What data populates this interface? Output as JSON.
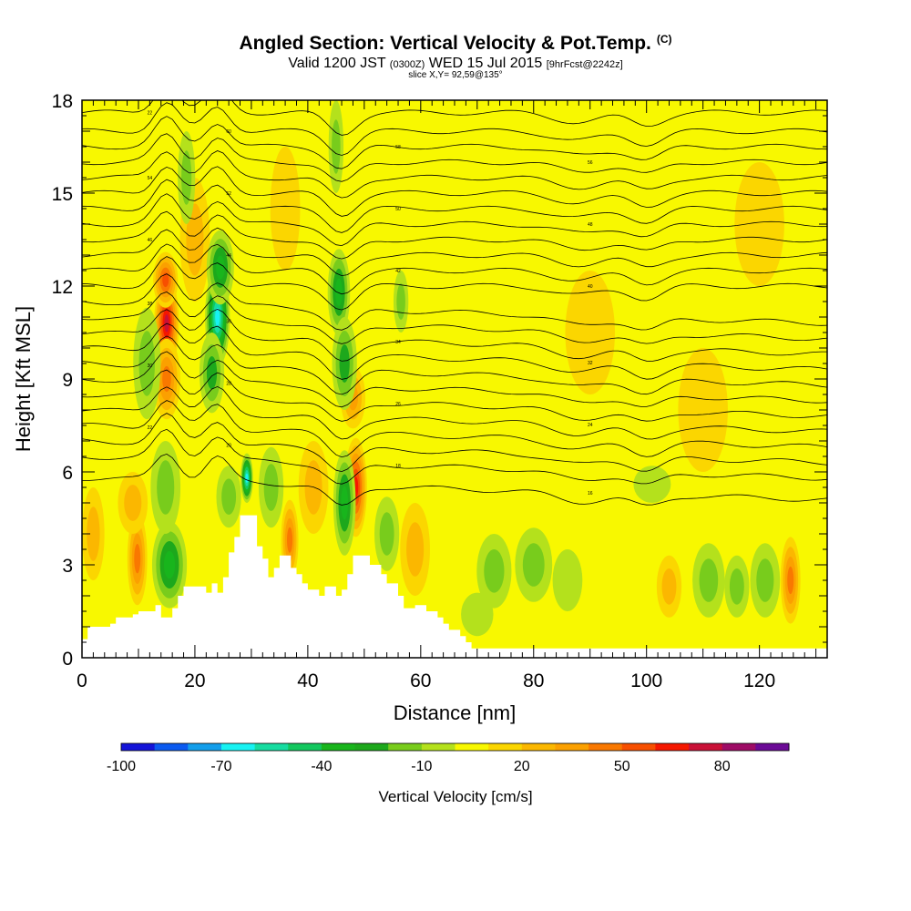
{
  "header": {
    "title": "Angled Section: Vertical Velocity & Pot.Temp.",
    "title_unit": "(C)",
    "valid_prefix": "Valid 1200 JST",
    "valid_utc": "(0300Z)",
    "valid_date": "WED 15 Jul 2015",
    "forecast": "[9hrFcst@2242z]",
    "slice": "slice X,Y= 92,59@135°"
  },
  "chart_data": {
    "type": "heatmap",
    "xlabel": "Distance [nm]",
    "ylabel": "Height [Kft MSL]",
    "xlim": [
      0,
      132
    ],
    "ylim": [
      0,
      18
    ],
    "x_ticks": [
      0,
      20,
      40,
      60,
      80,
      100,
      120
    ],
    "y_ticks": [
      0,
      3,
      6,
      9,
      12,
      15,
      18
    ],
    "background_level": 0,
    "terrain": [
      [
        0,
        0.6
      ],
      [
        1,
        1.0
      ],
      [
        5,
        1.1
      ],
      [
        6,
        1.3
      ],
      [
        9,
        1.4
      ],
      [
        10,
        1.5
      ],
      [
        13,
        1.7
      ],
      [
        14,
        1.3
      ],
      [
        16,
        1.6
      ],
      [
        17,
        2.0
      ],
      [
        18,
        2.3
      ],
      [
        22,
        2.1
      ],
      [
        23,
        2.4
      ],
      [
        24,
        2.1
      ],
      [
        25,
        2.6
      ],
      [
        26,
        3.4
      ],
      [
        27,
        3.9
      ],
      [
        28,
        4.6
      ],
      [
        30,
        4.6
      ],
      [
        31,
        3.6
      ],
      [
        32,
        3.2
      ],
      [
        33,
        2.6
      ],
      [
        34,
        2.9
      ],
      [
        35,
        3.3
      ],
      [
        36,
        3.3
      ],
      [
        37,
        2.9
      ],
      [
        38,
        2.7
      ],
      [
        39,
        2.4
      ],
      [
        40,
        2.2
      ],
      [
        42,
        2.0
      ],
      [
        43,
        2.3
      ],
      [
        45,
        2.0
      ],
      [
        46,
        2.2
      ],
      [
        47,
        2.7
      ],
      [
        48,
        3.3
      ],
      [
        50,
        3.3
      ],
      [
        51,
        3.0
      ],
      [
        53,
        2.7
      ],
      [
        54,
        2.4
      ],
      [
        56,
        2.0
      ],
      [
        57,
        1.6
      ],
      [
        59,
        1.7
      ],
      [
        61,
        1.5
      ],
      [
        63,
        1.3
      ],
      [
        64,
        1.1
      ],
      [
        65,
        0.9
      ],
      [
        67,
        0.7
      ],
      [
        68,
        0.5
      ],
      [
        69,
        0.3
      ],
      [
        132,
        0.3
      ]
    ],
    "velocity_cells": [
      {
        "x": 15,
        "y": 10.8,
        "sx": 1.0,
        "sy": 1.5,
        "value": 75
      },
      {
        "x": 15,
        "y": 9.0,
        "sx": 1.1,
        "sy": 1.3,
        "value": 45
      },
      {
        "x": 14.8,
        "y": 12.2,
        "sx": 1.0,
        "sy": 0.9,
        "value": 50
      },
      {
        "x": 9.8,
        "y": 3.2,
        "sx": 0.8,
        "sy": 1.5,
        "value": 45
      },
      {
        "x": 9.0,
        "y": 5.0,
        "sx": 1.2,
        "sy": 1.0,
        "value": 25
      },
      {
        "x": 36.8,
        "y": 3.8,
        "sx": 0.7,
        "sy": 1.3,
        "value": 45
      },
      {
        "x": 48.5,
        "y": 5.5,
        "sx": 0.9,
        "sy": 1.6,
        "value": 60
      },
      {
        "x": 48.0,
        "y": 8.4,
        "sx": 1.0,
        "sy": 1.0,
        "value": 30
      },
      {
        "x": 125.5,
        "y": 2.5,
        "sx": 0.8,
        "sy": 1.4,
        "value": 45
      },
      {
        "x": 104,
        "y": 2.3,
        "sx": 1.0,
        "sy": 1.0,
        "value": 25
      },
      {
        "x": 59,
        "y": 3.5,
        "sx": 1.2,
        "sy": 1.5,
        "value": 25
      },
      {
        "x": 41,
        "y": 5.5,
        "sx": 1.2,
        "sy": 1.5,
        "value": 20
      },
      {
        "x": 20,
        "y": 13.5,
        "sx": 1.2,
        "sy": 2.0,
        "value": 20
      },
      {
        "x": 36,
        "y": 14.5,
        "sx": 1.2,
        "sy": 2.0,
        "value": 18
      },
      {
        "x": 24,
        "y": 11.0,
        "sx": 1.0,
        "sy": 1.6,
        "value": -70
      },
      {
        "x": 24.5,
        "y": 12.6,
        "sx": 1.1,
        "sy": 1.2,
        "value": -45
      },
      {
        "x": 23,
        "y": 9.2,
        "sx": 1.0,
        "sy": 1.3,
        "value": -35
      },
      {
        "x": 29.2,
        "y": 5.8,
        "sx": 0.5,
        "sy": 0.8,
        "value": -70
      },
      {
        "x": 15.5,
        "y": 3.0,
        "sx": 1.4,
        "sy": 1.4,
        "value": -40
      },
      {
        "x": 14.8,
        "y": 5.5,
        "sx": 1.2,
        "sy": 1.5,
        "value": -20
      },
      {
        "x": 18.5,
        "y": 15.5,
        "sx": 0.7,
        "sy": 1.5,
        "value": -25
      },
      {
        "x": 11.5,
        "y": 9.5,
        "sx": 1.1,
        "sy": 1.8,
        "value": -20
      },
      {
        "x": 45.5,
        "y": 11.8,
        "sx": 0.9,
        "sy": 1.4,
        "value": -45
      },
      {
        "x": 46.5,
        "y": 9.5,
        "sx": 1.0,
        "sy": 1.5,
        "value": -30
      },
      {
        "x": 46.5,
        "y": 5.0,
        "sx": 0.9,
        "sy": 1.7,
        "value": -40
      },
      {
        "x": 45.0,
        "y": 16.5,
        "sx": 0.6,
        "sy": 1.5,
        "value": -20
      },
      {
        "x": 33.5,
        "y": 5.5,
        "sx": 1.0,
        "sy": 1.3,
        "value": -25
      },
      {
        "x": 26,
        "y": 5.2,
        "sx": 1.0,
        "sy": 1.0,
        "value": -25
      },
      {
        "x": 54,
        "y": 4.0,
        "sx": 1.0,
        "sy": 1.2,
        "value": -20
      },
      {
        "x": 56.5,
        "y": 11.5,
        "sx": 0.6,
        "sy": 1.0,
        "value": -20
      },
      {
        "x": 73,
        "y": 2.8,
        "sx": 1.4,
        "sy": 1.2,
        "value": -20
      },
      {
        "x": 80,
        "y": 3.0,
        "sx": 1.5,
        "sy": 1.2,
        "value": -20
      },
      {
        "x": 86,
        "y": 2.5,
        "sx": 1.2,
        "sy": 1.0,
        "value": -15
      },
      {
        "x": 70,
        "y": 1.4,
        "sx": 1.3,
        "sy": 0.7,
        "value": -15
      },
      {
        "x": 111,
        "y": 2.5,
        "sx": 1.3,
        "sy": 1.2,
        "value": -25
      },
      {
        "x": 116,
        "y": 2.3,
        "sx": 1.0,
        "sy": 1.0,
        "value": -25
      },
      {
        "x": 121,
        "y": 2.5,
        "sx": 1.2,
        "sy": 1.2,
        "value": -20
      },
      {
        "x": 101,
        "y": 5.6,
        "sx": 1.5,
        "sy": 0.6,
        "value": -15
      },
      {
        "x": 90,
        "y": 10.5,
        "sx": 2.0,
        "sy": 2.0,
        "value": 15
      },
      {
        "x": 110,
        "y": 8.0,
        "sx": 2.0,
        "sy": 2.0,
        "value": 12
      },
      {
        "x": 120,
        "y": 14.0,
        "sx": 2.0,
        "sy": 2.0,
        "value": 12
      },
      {
        "x": 2,
        "y": 4.0,
        "sx": 0.9,
        "sy": 1.5,
        "value": 20
      }
    ],
    "colorbar": {
      "levels": [
        -100,
        -90,
        -80,
        -70,
        -60,
        -50,
        -40,
        -30,
        -20,
        -10,
        0,
        10,
        20,
        30,
        40,
        50,
        60,
        70,
        80,
        90
      ],
      "colors": [
        "#1414d8",
        "#0b5af0",
        "#129eeb",
        "#17f2f2",
        "#16dca0",
        "#13c75e",
        "#18b51c",
        "#1da81c",
        "#78cc1c",
        "#b4e11c",
        "#f8f800",
        "#fbd600",
        "#fbb700",
        "#fba000",
        "#f97800",
        "#f74f00",
        "#f51700",
        "#c91037",
        "#9e0c66",
        "#6b0a96"
      ],
      "tick_labels": [
        "-100",
        "-70",
        "-40",
        "-10",
        "20",
        "50",
        "80"
      ],
      "label": "Vertical Velocity [cm/s]"
    },
    "theta_contours": [
      {
        "base": 17.6,
        "label": "22"
      },
      {
        "base": 17.0,
        "label": "60"
      },
      {
        "base": 16.5,
        "label": "58"
      },
      {
        "base": 16.0,
        "label": "56"
      },
      {
        "base": 15.5,
        "label": "54"
      },
      {
        "base": 15.0,
        "label": "52"
      },
      {
        "base": 14.5,
        "label": "50"
      },
      {
        "base": 14.0,
        "label": "48"
      },
      {
        "base": 13.5,
        "label": "46"
      },
      {
        "base": 13.0,
        "label": "44"
      },
      {
        "base": 12.5,
        "label": "42"
      },
      {
        "base": 12.0,
        "label": "40"
      },
      {
        "base": 11.5,
        "label": "38"
      },
      {
        "base": 11.0,
        "label": "36"
      },
      {
        "base": 10.5,
        "label": "34"
      },
      {
        "base": 10.0,
        "label": "32"
      },
      {
        "base": 9.5,
        "label": "30"
      },
      {
        "base": 9.0,
        "label": "28"
      },
      {
        "base": 8.5,
        "label": "26"
      },
      {
        "base": 8.0,
        "label": "24"
      },
      {
        "base": 7.5,
        "label": "22"
      },
      {
        "base": 7.0,
        "label": "20"
      },
      {
        "base": 6.5,
        "label": "18"
      },
      {
        "base": 5.8,
        "label": "16"
      }
    ],
    "grid": false,
    "legend": "bottom"
  }
}
